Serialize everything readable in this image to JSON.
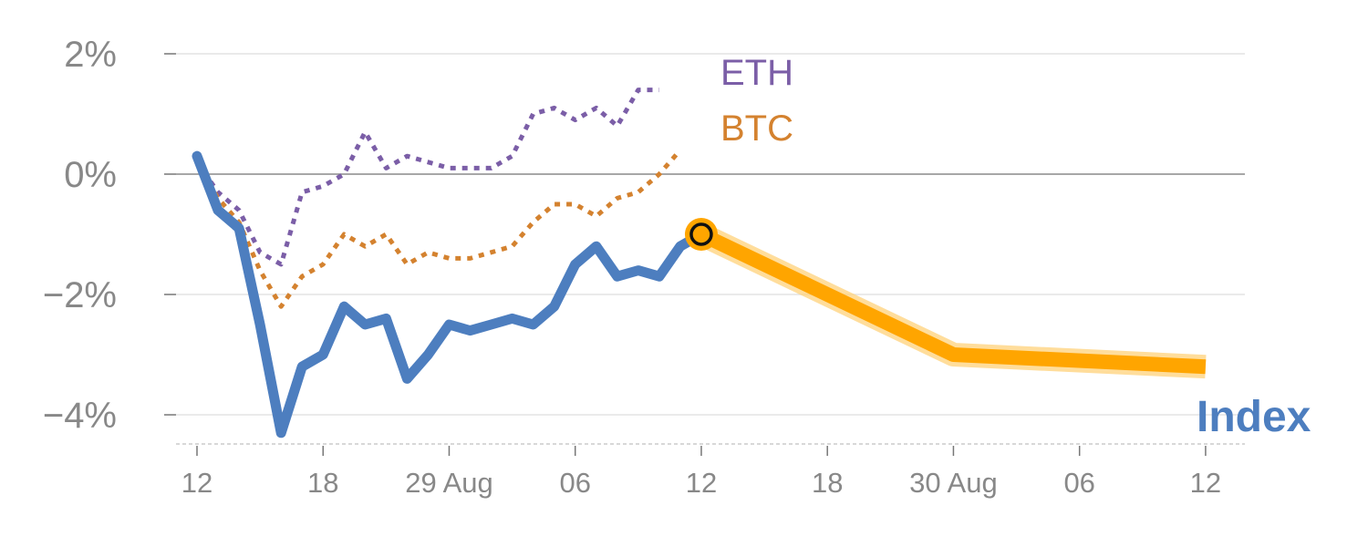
{
  "chart_data": {
    "type": "line",
    "title": "",
    "xlabel": "",
    "ylabel": "",
    "y_tick_labels": [
      "2%",
      "0%",
      "−2%",
      "−4%"
    ],
    "y_ticks": [
      2,
      0,
      -2,
      -4
    ],
    "ylim": [
      -4.5,
      2.1
    ],
    "x_tick_labels": [
      "12",
      "18",
      "29 Aug",
      "06",
      "12",
      "18",
      "30 Aug",
      "06",
      "12"
    ],
    "x_ticks": [
      0,
      6,
      12,
      18,
      24,
      30,
      36,
      42,
      48
    ],
    "xlim": [
      -1,
      49.5
    ],
    "grid": true,
    "zero_line": true,
    "series": [
      {
        "name": "ETH",
        "style": "dotted",
        "color": "#7B5EA7",
        "x": [
          0,
          1,
          2,
          3,
          4,
          5,
          6,
          7,
          8,
          9,
          10,
          11,
          12,
          13,
          14,
          15,
          16,
          17,
          18,
          19,
          20,
          21,
          22,
          23,
          24
        ],
        "values": [
          0.2,
          -0.3,
          -0.6,
          -1.3,
          -1.5,
          -0.3,
          -0.2,
          0.0,
          0.7,
          0.1,
          0.3,
          0.2,
          0.1,
          0.1,
          0.1,
          0.3,
          1.0,
          1.1,
          0.9,
          1.1,
          0.8,
          1.4,
          1.4,
          null,
          null
        ]
      },
      {
        "name": "BTC",
        "style": "dotted",
        "color": "#D4822F",
        "x": [
          0,
          1,
          2,
          3,
          4,
          5,
          6,
          7,
          8,
          9,
          10,
          11,
          12,
          13,
          14,
          15,
          16,
          17,
          18,
          19,
          20,
          21,
          22,
          23,
          24
        ],
        "values": [
          0.2,
          -0.4,
          -0.8,
          -1.6,
          -2.2,
          -1.7,
          -1.5,
          -1.0,
          -1.2,
          -1.0,
          -1.5,
          -1.3,
          -1.4,
          -1.4,
          -1.3,
          -1.2,
          -0.8,
          -0.5,
          -0.5,
          -0.7,
          -0.4,
          -0.3,
          0.0,
          0.4,
          null
        ]
      },
      {
        "name": "Index",
        "style": "solid",
        "color": "#4D7EBF",
        "x": [
          0,
          1,
          2,
          3,
          4,
          5,
          6,
          7,
          8,
          9,
          10,
          11,
          12,
          13,
          14,
          15,
          16,
          17,
          18,
          19,
          20,
          21,
          22,
          23,
          24
        ],
        "values": [
          0.3,
          -0.6,
          -0.9,
          -2.5,
          -4.3,
          -3.2,
          -3.0,
          -2.2,
          -2.5,
          -2.4,
          -3.4,
          -3.0,
          -2.5,
          -2.6,
          -2.5,
          -2.4,
          -2.5,
          -2.2,
          -1.5,
          -1.2,
          -1.7,
          -1.6,
          -1.7,
          -1.2,
          -1.0
        ]
      }
    ],
    "forecast": {
      "color": "#FFA500",
      "x": [
        24,
        36,
        48
      ],
      "values": [
        -1.0,
        -3.0,
        -3.2
      ]
    },
    "highlight_point": {
      "x": 24,
      "value": -1.0
    },
    "labels": {
      "eth": "ETH",
      "btc": "BTC",
      "index": "Index"
    }
  }
}
